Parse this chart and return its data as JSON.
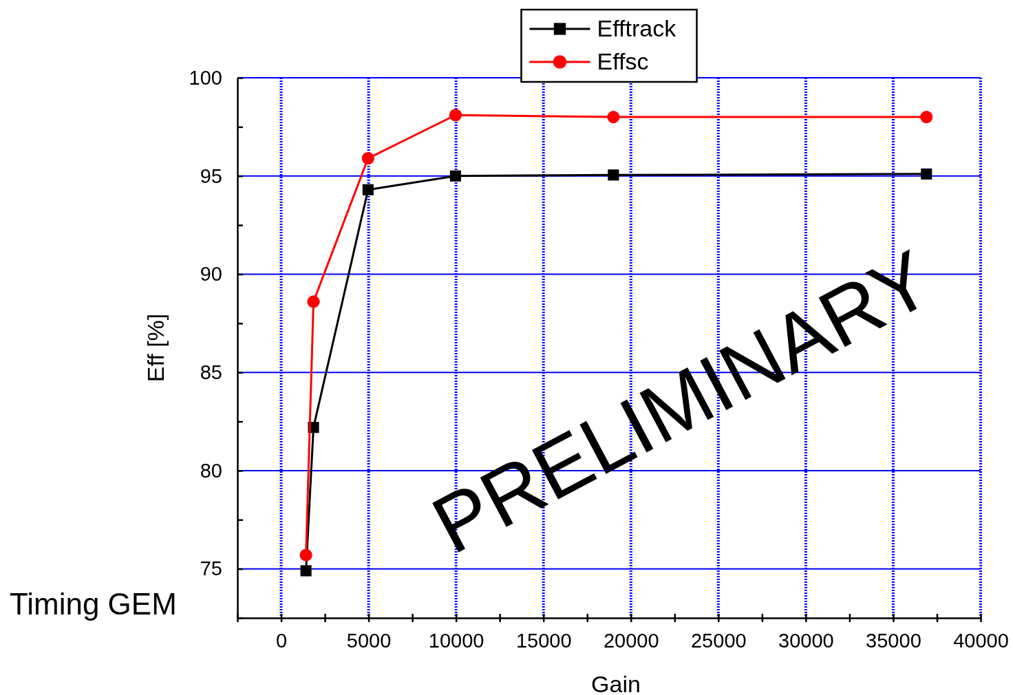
{
  "chart_data": {
    "type": "line",
    "xlabel": "Gain",
    "ylabel": "Eff [%]",
    "xlim": [
      -2500,
      40000
    ],
    "ylim": [
      72.5,
      100
    ],
    "xticks": [
      {
        "value": -2500,
        "label": null
      },
      0,
      {
        "value": 2500,
        "label": null
      },
      5000,
      {
        "value": 7500,
        "label": null
      },
      10000,
      {
        "value": 12500,
        "label": null
      },
      15000,
      {
        "value": 17500,
        "label": null
      },
      20000,
      {
        "value": 22500,
        "label": null
      },
      25000,
      {
        "value": 27500,
        "label": null
      },
      30000,
      {
        "value": 32500,
        "label": null
      },
      35000,
      {
        "value": 37500,
        "label": null
      },
      40000
    ],
    "yticks": [
      {
        "value": 72.5,
        "label": null
      },
      75,
      {
        "value": 77.5,
        "label": null
      },
      80,
      {
        "value": 82.5,
        "label": null
      },
      85,
      {
        "value": 87.5,
        "label": null
      },
      90,
      {
        "value": 92.5,
        "label": null
      },
      95,
      {
        "value": 97.5,
        "label": null
      },
      100
    ],
    "grid": true,
    "legend": "top",
    "line_style": "solid",
    "series": [
      {
        "name": "Efftrack",
        "color": "#000000",
        "marker": "square",
        "x": [
          1420,
          1850,
          4970,
          9970,
          19000,
          36900
        ],
        "values": [
          74.9,
          82.2,
          94.3,
          95.0,
          95.05,
          95.1
        ]
      },
      {
        "name": "Effsc",
        "color": "#ff0000",
        "marker": "circle",
        "x": [
          1420,
          1850,
          4970,
          9970,
          19000,
          36900
        ],
        "values": [
          75.7,
          88.6,
          95.9,
          98.1,
          98.0,
          98.0
        ]
      }
    ],
    "annotations": [
      "PRELIMINARY",
      "Timing GEM"
    ]
  }
}
